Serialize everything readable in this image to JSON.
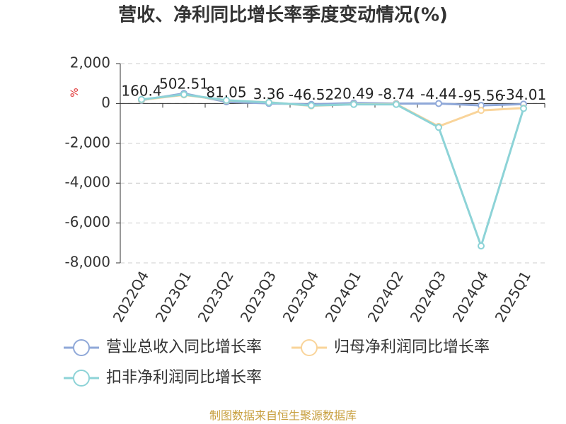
{
  "chart_data": {
    "type": "line",
    "title": "营收、净利同比增长率季度变动情况(%)",
    "y_label": "%",
    "categories": [
      "2022Q4",
      "2023Q1",
      "2023Q2",
      "2023Q3",
      "2023Q4",
      "2024Q1",
      "2024Q2",
      "2024Q3",
      "2024Q4",
      "2025Q1"
    ],
    "series": [
      {
        "name": "营业总收入同比增长率",
        "color": "#8fa8d8",
        "values": [
          160.4,
          502.51,
          81.05,
          3.36,
          -46.52,
          20.49,
          -8.74,
          -4.44,
          -95.56,
          -34.01
        ],
        "labels": true
      },
      {
        "name": "归母净利润同比增长率",
        "color": "#f9d49a",
        "values": [
          180,
          430,
          150,
          60,
          -120,
          -40,
          -30,
          -1150,
          -350,
          -230
        ]
      },
      {
        "name": "扣非净利润同比增长率",
        "color": "#8dd3d7",
        "values": [
          200,
          450,
          160,
          50,
          -100,
          -50,
          -50,
          -1200,
          -7150,
          -250
        ]
      }
    ],
    "ylim": [
      -8000,
      2000
    ],
    "yticks": [
      {
        "value": -8000,
        "label": "-8,000"
      },
      {
        "value": -6000,
        "label": "-6,000"
      },
      {
        "value": -4000,
        "label": "-4,000"
      },
      {
        "value": -2000,
        "label": "-2,000"
      },
      0,
      {
        "value": 2000,
        "label": "2,000"
      }
    ],
    "grid": true,
    "source": "制图数据来自恒生聚源数据库"
  }
}
